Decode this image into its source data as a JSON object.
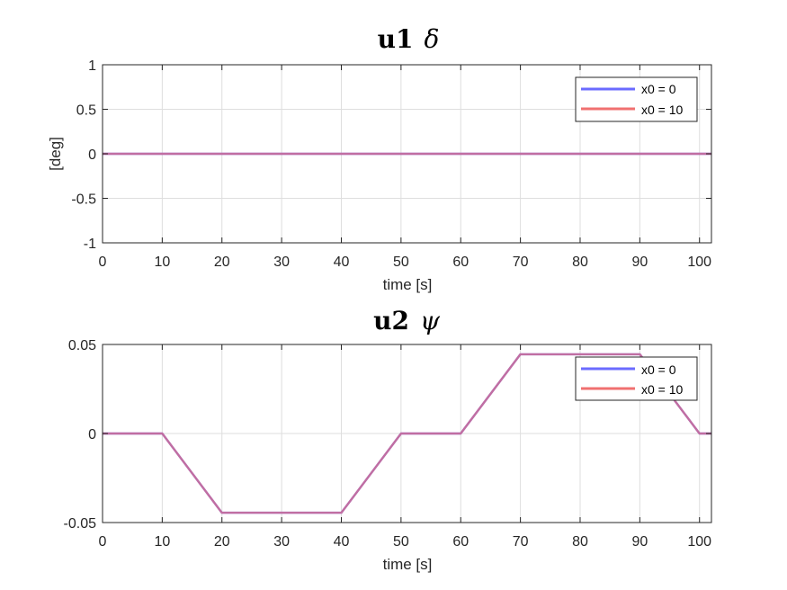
{
  "figure": {
    "colors": {
      "series_a": "#6b6bff",
      "series_b": "#f07070",
      "overlap": "#c1397a"
    }
  },
  "chart_data": [
    {
      "type": "line",
      "title": {
        "main": "u1",
        "symbol": "δ"
      },
      "xlabel": "time [s]",
      "ylabel": "[deg]",
      "xlim": [
        0,
        102
      ],
      "ylim": [
        -1,
        1
      ],
      "xticks": [
        0,
        10,
        20,
        30,
        40,
        50,
        60,
        70,
        80,
        90,
        100
      ],
      "xtick_labels": [
        "0",
        "10",
        "20",
        "30",
        "40",
        "50",
        "60",
        "70",
        "80",
        "90",
        "100"
      ],
      "yticks": [
        -1,
        -0.5,
        0,
        0.5,
        1
      ],
      "ytick_labels": [
        "-1",
        "-0.5",
        "0",
        "0.5",
        "1"
      ],
      "grid": true,
      "legend_position": "top-right",
      "series": [
        {
          "name": "x0 = 0",
          "color": "#6b6bff",
          "x": [
            0,
            102
          ],
          "y": [
            0,
            0
          ]
        },
        {
          "name": "x0 = 10",
          "color": "#f07070",
          "x": [
            0,
            102
          ],
          "y": [
            0,
            0
          ]
        }
      ]
    },
    {
      "type": "line",
      "title": {
        "main": "u2",
        "symbol": "ψ"
      },
      "xlabel": "time [s]",
      "ylabel": "",
      "xlim": [
        0,
        102
      ],
      "ylim": [
        -0.05,
        0.05
      ],
      "xticks": [
        0,
        10,
        20,
        30,
        40,
        50,
        60,
        70,
        80,
        90,
        100
      ],
      "xtick_labels": [
        "0",
        "10",
        "20",
        "30",
        "40",
        "50",
        "60",
        "70",
        "80",
        "90",
        "100"
      ],
      "yticks": [
        -0.05,
        0,
        0.05
      ],
      "ytick_labels": [
        "-0.05",
        "0",
        "0.05"
      ],
      "grid": true,
      "legend_position": "top-right",
      "series": [
        {
          "name": "x0 = 0",
          "color": "#6b6bff",
          "x": [
            0,
            10,
            20,
            40,
            50,
            60,
            70,
            90,
            100,
            102
          ],
          "y": [
            0,
            0,
            -0.0445,
            -0.0445,
            0,
            0,
            0.0445,
            0.0445,
            0,
            0
          ]
        },
        {
          "name": "x0 = 10",
          "color": "#f07070",
          "x": [
            0,
            10,
            20,
            40,
            50,
            60,
            70,
            90,
            100,
            102
          ],
          "y": [
            0,
            0,
            -0.0445,
            -0.0445,
            0,
            0,
            0.0445,
            0.0445,
            0,
            0
          ]
        }
      ]
    }
  ]
}
